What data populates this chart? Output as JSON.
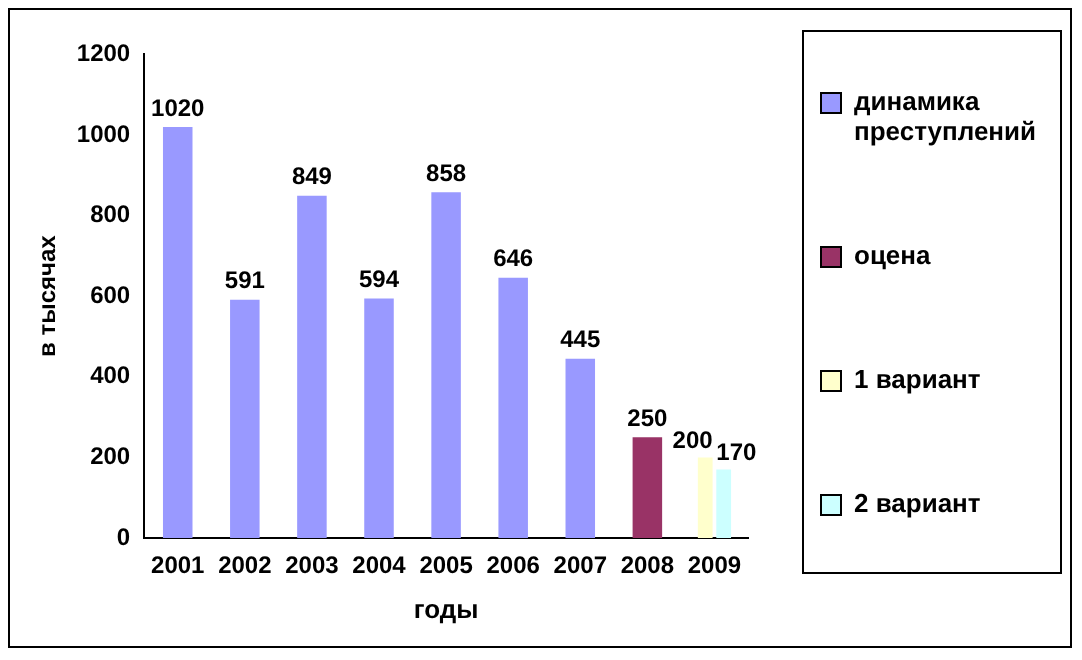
{
  "chart_data": {
    "type": "bar",
    "xlabel": "годы",
    "ylabel": "в тысячах",
    "categories": [
      "2001",
      "2002",
      "2003",
      "2004",
      "2005",
      "2006",
      "2007",
      "2008",
      "2009"
    ],
    "series": [
      {
        "name": "динамика преступлений",
        "color": "#9999ff",
        "values": [
          1020,
          591,
          849,
          594,
          858,
          646,
          445,
          null,
          null
        ]
      },
      {
        "name": "оцена",
        "color": "#993366",
        "values": [
          null,
          null,
          null,
          null,
          null,
          null,
          null,
          250,
          null
        ]
      },
      {
        "name": "1 вариант",
        "color": "#ffffcc",
        "values": [
          null,
          null,
          null,
          null,
          null,
          null,
          null,
          null,
          200
        ]
      },
      {
        "name": "2 вариант",
        "color": "#ccffff",
        "values": [
          null,
          null,
          null,
          null,
          null,
          null,
          null,
          null,
          170
        ]
      }
    ],
    "ylim": [
      0,
      1200
    ],
    "yticks": [
      0,
      200,
      400,
      600,
      800,
      1000,
      1200
    ],
    "grid": false,
    "legend": "right",
    "data_labels": true
  }
}
